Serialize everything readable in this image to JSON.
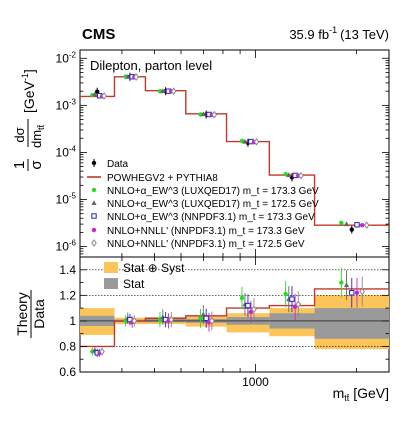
{
  "header": {
    "experiment": "CMS",
    "lumi_value": "35.9 fb",
    "lumi_exp": "-1",
    "lumi_energy": "(13 TeV)"
  },
  "chart_data": [
    {
      "panel": "top",
      "type": "scatter",
      "annotation": "Dilepton, parton level",
      "ylabel_html": "1/σ dσ/dm_tt̄ [GeV^-1]",
      "yscale": "log",
      "ylim": [
        6e-07,
        0.015
      ],
      "y_ticks": [
        "10^-6",
        "10^-5",
        "10^-4",
        "10^-3",
        "10^-2"
      ],
      "bins": [
        {
          "lo": 300,
          "hi": 380
        },
        {
          "lo": 380,
          "hi": 470
        },
        {
          "lo": 470,
          "hi": 620
        },
        {
          "lo": 620,
          "hi": 820
        },
        {
          "lo": 820,
          "hi": 1100
        },
        {
          "lo": 1100,
          "hi": 1500
        },
        {
          "lo": 1500,
          "hi": 2500
        }
      ],
      "series": [
        {
          "name": "Data",
          "marker": "filled-circle",
          "color": "#000000",
          "values": [
            0.00195,
            0.00405,
            0.002,
            0.00064,
            0.00016,
            2.95e-05,
            2.3e-06
          ]
        },
        {
          "name": "POWHEGV2 + PYTHIA8",
          "marker": "line",
          "color": "#c0392b",
          "values": [
            0.00155,
            0.00405,
            0.00205,
            0.00066,
            0.00017,
            3.3e-05,
            2.85e-06
          ]
        },
        {
          "name": "NNLO+α_EW^3 (LUXQED17) m_t = 173.3 GeV",
          "marker": "filled-circle",
          "color": "#22dd22",
          "values": [
            0.00165,
            0.0041,
            0.002,
            0.00064,
            0.000175,
            3.45e-05,
            3.2e-06
          ]
        },
        {
          "name": "NNLO+α_EW^3 (LUXQED17) m_t = 172.5 GeV",
          "marker": "filled-triangle",
          "color": "#666666",
          "values": [
            0.0017,
            0.00405,
            0.002,
            0.00065,
            0.00017,
            3.3e-05,
            3e-06
          ]
        },
        {
          "name": "NNLO+α_EW^3 (NNPDF3.1) m_t = 173.3 GeV",
          "marker": "open-square",
          "color": "#2222cc",
          "values": [
            0.0016,
            0.00405,
            0.002,
            0.00064,
            0.00017,
            3.25e-05,
            2.9e-06
          ]
        },
        {
          "name": "NNLO+NNLL' (NNPDF3.1) m_t = 173.3 GeV",
          "marker": "filled-circle",
          "color": "#cc22cc",
          "values": [
            0.00155,
            0.004,
            0.002,
            0.00063,
            0.000165,
            3.2e-05,
            2.85e-06
          ]
        },
        {
          "name": "NNLO+NNLL' (NNPDF3.1) m_t = 172.5 GeV",
          "marker": "open-diamond",
          "color": "#888888",
          "values": [
            0.00158,
            0.004,
            0.002,
            0.00063,
            0.000168,
            3.2e-05,
            2.85e-06
          ]
        }
      ],
      "legend_position": "lower-left"
    },
    {
      "panel": "ratio",
      "type": "scatter",
      "ylabel_top": "Theory",
      "ylabel_bottom": "Data",
      "ylim": [
        0.6,
        1.5
      ],
      "y_ticks": [
        "0.6",
        "0.8",
        "1",
        "1.2",
        "1.4"
      ],
      "xlabel": "m_tt̄ [GeV]",
      "x_tick_label": "1000",
      "xscale": "log",
      "xlim": [
        300,
        2500
      ],
      "legend": [
        "Stat ⊕ Syst",
        "Stat"
      ],
      "band_colors": {
        "stat_syst": "#fcc55a",
        "stat": "#9a9a9a"
      },
      "band_stat_syst": [
        [
          0.89,
          1.1
        ],
        [
          0.975,
          1.025
        ],
        [
          0.975,
          1.03
        ],
        [
          0.955,
          1.04
        ],
        [
          0.91,
          1.06
        ],
        [
          0.88,
          1.1
        ],
        [
          0.78,
          1.2
        ]
      ],
      "band_stat": [
        [
          0.96,
          1.04
        ],
        [
          0.99,
          1.01
        ],
        [
          0.99,
          1.015
        ],
        [
          0.985,
          1.015
        ],
        [
          0.97,
          1.03
        ],
        [
          0.94,
          1.06
        ],
        [
          0.86,
          1.1
        ]
      ],
      "series": [
        {
          "name": "POWHEGV2 + PYTHIA8",
          "values": [
            0.8,
            1.0,
            1.02,
            1.04,
            1.1,
            1.12,
            1.25
          ]
        },
        {
          "name": "NNLO+α_EW^3 (LUXQED17) m_t = 173.3 GeV",
          "values": [
            0.76,
            1.0,
            1.01,
            1.02,
            1.18,
            1.21,
            1.3
          ]
        },
        {
          "name": "NNLO+α_EW^3 (LUXQED17) m_t = 172.5 GeV",
          "values": [
            0.77,
            1.02,
            1.03,
            1.05,
            1.13,
            1.17,
            1.28
          ]
        },
        {
          "name": "NNLO+α_EW^3 (NNPDF3.1) m_t = 173.3 GeV",
          "values": [
            0.75,
            1.01,
            1.01,
            1.02,
            1.12,
            1.17,
            1.22
          ]
        },
        {
          "name": "NNLO+NNLL' (NNPDF3.1) m_t = 173.3 GeV",
          "values": [
            0.75,
            0.99,
            1.0,
            0.99,
            1.07,
            1.11,
            1.22
          ]
        },
        {
          "name": "NNLO+NNLL' (NNPDF3.1) m_t = 172.5 GeV",
          "values": [
            0.76,
            1.0,
            1.01,
            1.0,
            1.09,
            1.13,
            1.23
          ]
        }
      ]
    }
  ]
}
